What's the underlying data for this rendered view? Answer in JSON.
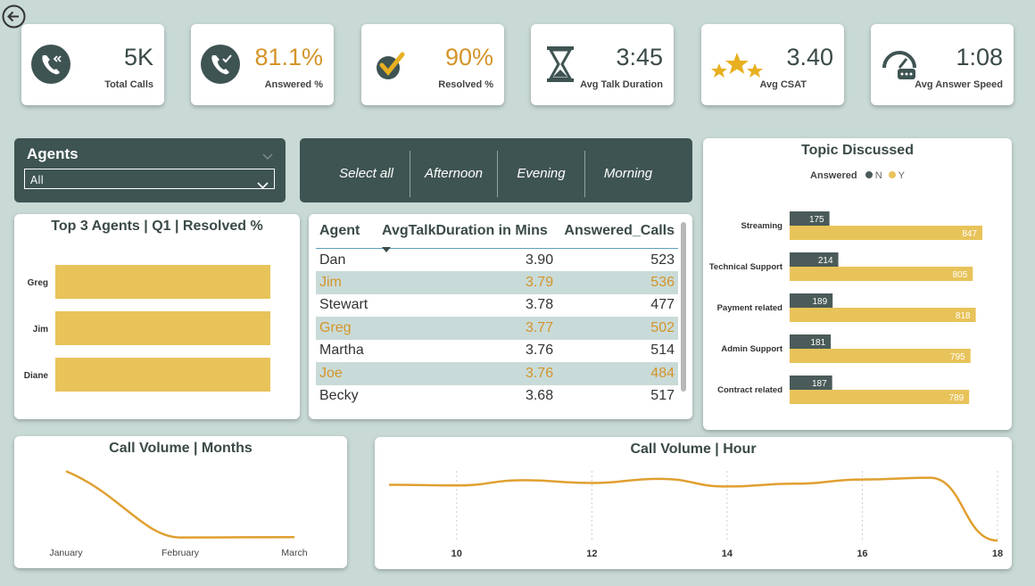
{
  "nav": {
    "back_icon": "back-arrow-icon"
  },
  "kpis": [
    {
      "value": "5K",
      "label": "Total Calls",
      "icon": "phone-icon",
      "color": "dark"
    },
    {
      "value": "81.1%",
      "label": "Answered %",
      "icon": "phone-check-icon",
      "color": "gold"
    },
    {
      "value": "90%",
      "label": "Resolved %",
      "icon": "checkmark-icon",
      "color": "gold"
    },
    {
      "value": "3:45",
      "label": "Avg Talk Duration",
      "icon": "hourglass-icon",
      "color": "dark"
    },
    {
      "value": "3.40",
      "label": "Avg CSAT",
      "icon": "stars-icon",
      "color": "dark"
    },
    {
      "value": "1:08",
      "label": "Avg Answer Speed",
      "icon": "speedometer-icon",
      "color": "dark"
    }
  ],
  "agents_slicer": {
    "title": "Agents",
    "selected": "All"
  },
  "shift_slicer": {
    "options": [
      "Select all",
      "Afternoon",
      "Evening",
      "Morning"
    ]
  },
  "top_agents": {
    "title": "Top 3 Agents | Q1 | Resolved %",
    "chart_data": {
      "type": "bar",
      "orientation": "horizontal",
      "categories": [
        "Greg",
        "Jim",
        "Diane"
      ],
      "values": [
        1,
        1,
        1
      ],
      "title": "Top 3 Agents | Q1 | Resolved %"
    }
  },
  "agent_table": {
    "headers": [
      "Agent",
      "AvgTalkDuration in Mins",
      "Answered_Calls"
    ],
    "rows": [
      [
        "Dan",
        "3.90",
        "523"
      ],
      [
        "Jim",
        "3.79",
        "536"
      ],
      [
        "Stewart",
        "3.78",
        "477"
      ],
      [
        "Greg",
        "3.77",
        "502"
      ],
      [
        "Martha",
        "3.76",
        "514"
      ],
      [
        "Joe",
        "3.76",
        "484"
      ],
      [
        "Becky",
        "3.68",
        "517"
      ]
    ]
  },
  "topic": {
    "title": "Topic Discussed",
    "legend_title": "Answered",
    "colors": {
      "N": "#4a5b59",
      "Y": "#e8c35a"
    },
    "chart_data": {
      "type": "bar",
      "orientation": "horizontal",
      "title": "Topic Discussed",
      "legend_title": "Answered",
      "categories": [
        "Streaming",
        "Technical Support",
        "Payment related",
        "Admin Support",
        "Contract related"
      ],
      "series": [
        {
          "name": "N",
          "values": [
            175,
            214,
            189,
            181,
            187
          ]
        },
        {
          "name": "Y",
          "values": [
            847,
            805,
            818,
            795,
            789
          ]
        }
      ]
    }
  },
  "months": {
    "title": "Call Volume | Months",
    "chart_data": {
      "type": "line",
      "title": "Call Volume | Months",
      "categories": [
        "January",
        "February",
        "March"
      ],
      "values": [
        1900,
        1550,
        1552
      ],
      "ylim": [
        1520,
        1920
      ]
    }
  },
  "hours": {
    "title": "Call Volume | Hour",
    "chart_data": {
      "type": "line",
      "title": "Call Volume | Hour",
      "x": [
        9,
        10,
        11,
        12,
        13,
        14,
        15,
        16,
        17,
        18
      ],
      "values": [
        540,
        538,
        553,
        545,
        557,
        535,
        543,
        555,
        560,
        380
      ],
      "xticks": [
        "10",
        "12",
        "14",
        "16",
        "18"
      ],
      "ylim": [
        370,
        600
      ]
    }
  },
  "accent": "#e0a030"
}
